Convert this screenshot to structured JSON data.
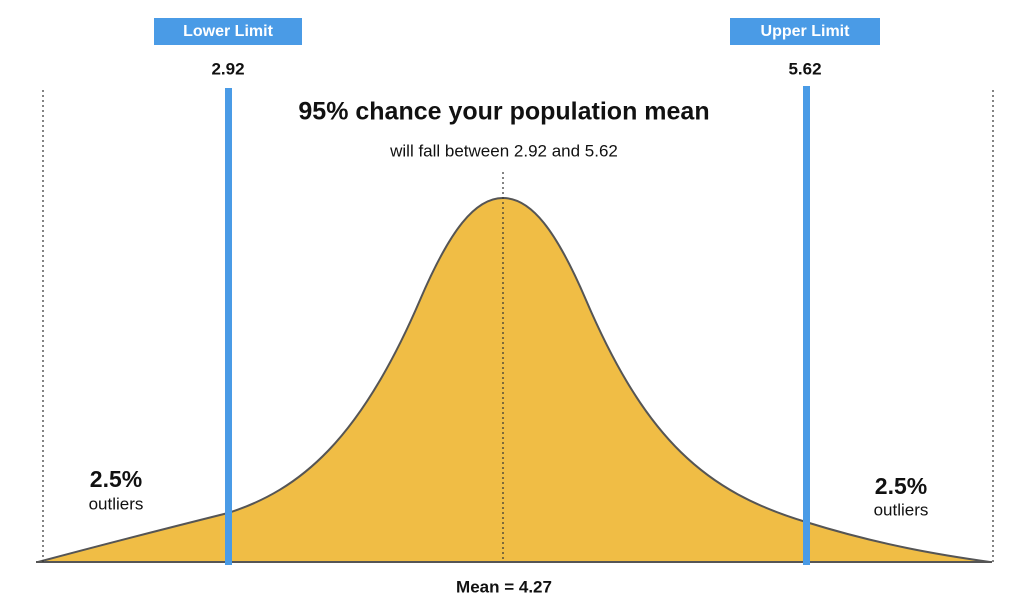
{
  "limits": [
    {
      "label": "Lower Limit",
      "value": "2.92"
    },
    {
      "label": "Upper Limit",
      "value": "5.62"
    }
  ],
  "headline": {
    "title": "95% chance your population mean",
    "subtitle": "will fall between 2.92 and 5.62"
  },
  "tails": [
    {
      "percent": "2.5%",
      "label": "outliers"
    },
    {
      "percent": "2.5%",
      "label": "outliers"
    }
  ],
  "mean_label": "Mean = 4.27"
}
